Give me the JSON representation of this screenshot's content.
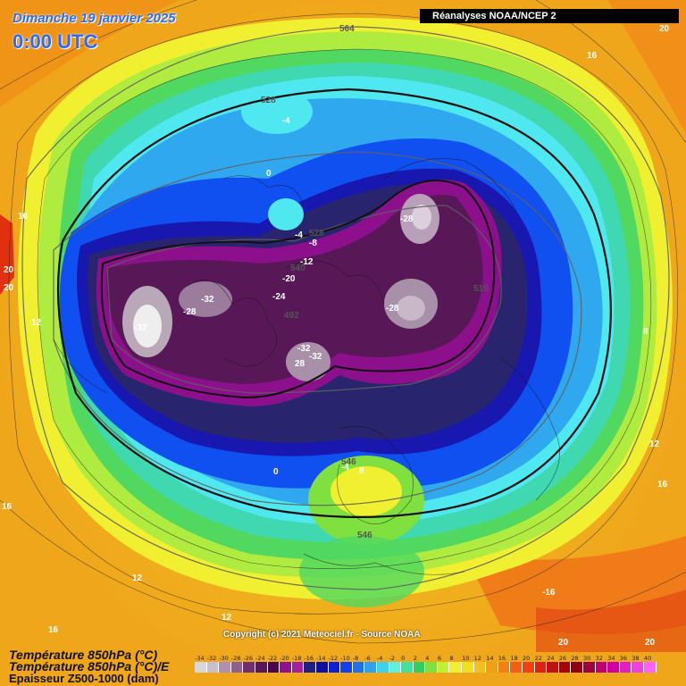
{
  "header": {
    "date": "Dimanche 19 janvier 2025",
    "time": "0:00 UTC",
    "source_badge": "Réanalyses NOAA/NCEP 2"
  },
  "footer": {
    "copyright": "Copyright (c) 2021 Meteociel.fr - Source NOAA",
    "legend_line1": "Température 850hPa (°C)",
    "legend_line2": "Température 850hPa (°C)/E",
    "legend_line3": "Epaisseur Z500-1000 (dam)"
  },
  "scale": {
    "values": [
      "-34",
      "-32",
      "-30",
      "-28",
      "-26",
      "-24",
      "-22",
      "-20",
      "-18",
      "-16",
      "-14",
      "-12",
      "-10",
      "-8",
      "-6",
      "-4",
      "-2",
      "0",
      "2",
      "4",
      "6",
      "8",
      "10",
      "12",
      "14",
      "16",
      "18",
      "20",
      "22",
      "24",
      "26",
      "28",
      "30",
      "32",
      "34",
      "36",
      "38",
      "40"
    ],
    "colors": [
      "#d8d8d8",
      "#c8c0c8",
      "#b090b0",
      "#906090",
      "#703070",
      "#581858",
      "#480848",
      "#901090",
      "#a020a0",
      "#202080",
      "#1010a0",
      "#1020d0",
      "#1040f0",
      "#2070f0",
      "#30a0f0",
      "#40d0f0",
      "#60f0e0",
      "#40e0a0",
      "#30d060",
      "#80e040",
      "#c0f030",
      "#f0f030",
      "#f0e020",
      "#f0c020",
      "#f0a018",
      "#f08010",
      "#f06010",
      "#f04010",
      "#e02010",
      "#c01010",
      "#a00808",
      "#900010",
      "#a00040",
      "#c00070",
      "#d000a0",
      "#e020c0",
      "#f040e0",
      "#ff60ff"
    ]
  },
  "map_labels": [
    {
      "text": "564"
    },
    {
      "text": "20"
    },
    {
      "text": "16"
    },
    {
      "text": "528"
    },
    {
      "text": "-4"
    },
    {
      "text": "0"
    },
    {
      "text": "16"
    },
    {
      "text": "-4"
    },
    {
      "text": "528"
    },
    {
      "text": "-8"
    },
    {
      "text": "-12"
    },
    {
      "text": "540"
    },
    {
      "text": "-20"
    },
    {
      "text": "-24"
    },
    {
      "text": "-28"
    },
    {
      "text": "-32"
    },
    {
      "text": "-28"
    },
    {
      "text": "-32"
    },
    {
      "text": "492"
    },
    {
      "text": "-28"
    },
    {
      "text": "510"
    },
    {
      "text": "-32"
    },
    {
      "text": "-32"
    },
    {
      "text": "28"
    },
    {
      "text": "20"
    },
    {
      "text": "20"
    },
    {
      "text": "12"
    },
    {
      "text": "8"
    },
    {
      "text": "12"
    },
    {
      "text": "16"
    },
    {
      "text": "0"
    },
    {
      "text": "546"
    },
    {
      "text": "-4"
    },
    {
      "text": "8"
    },
    {
      "text": "546"
    },
    {
      "text": "16"
    },
    {
      "text": "12"
    },
    {
      "text": "12"
    },
    {
      "text": "-16"
    },
    {
      "text": "16"
    },
    {
      "text": "20"
    },
    {
      "text": "20"
    }
  ]
}
